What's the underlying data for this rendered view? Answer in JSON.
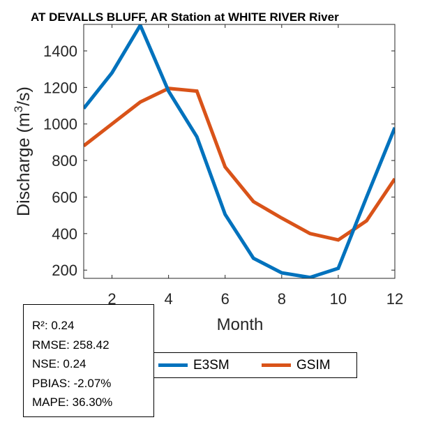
{
  "chart_data": {
    "type": "line",
    "title": "AT DEVALLS BLUFF, AR  Station at  WHITE RIVER  River",
    "xlabel": "Month",
    "ylabel_main": "Discharge (m",
    "ylabel_sup": "3",
    "ylabel_end": "/s)",
    "xlim": [
      1,
      12
    ],
    "ylim": [
      155,
      1545
    ],
    "xticks": [
      2,
      4,
      6,
      8,
      10,
      12
    ],
    "yticks": [
      200,
      400,
      600,
      800,
      1000,
      1200,
      1400
    ],
    "series": [
      {
        "name": "E3SM",
        "color": "#0072BD",
        "x": [
          1,
          2,
          3,
          4,
          5,
          6,
          7,
          8,
          9,
          10,
          11,
          12
        ],
        "values": [
          1085,
          1280,
          1540,
          1180,
          930,
          505,
          265,
          185,
          160,
          210,
          600,
          980
        ]
      },
      {
        "name": "GSIM",
        "color": "#D95319",
        "x": [
          1,
          2,
          3,
          4,
          5,
          6,
          7,
          8,
          9,
          10,
          11,
          12
        ],
        "values": [
          880,
          1000,
          1120,
          1195,
          1180,
          765,
          575,
          485,
          400,
          365,
          470,
          700
        ]
      }
    ]
  },
  "stats": {
    "r2": "R²: 0.24",
    "rmse": "RMSE: 258.42",
    "nse": "NSE: 0.24",
    "pbias": "PBIAS: -2.07%",
    "mape": "MAPE: 36.30%"
  },
  "legend": {
    "e3sm_label": "E3SM",
    "gsim_label": "GSIM"
  }
}
